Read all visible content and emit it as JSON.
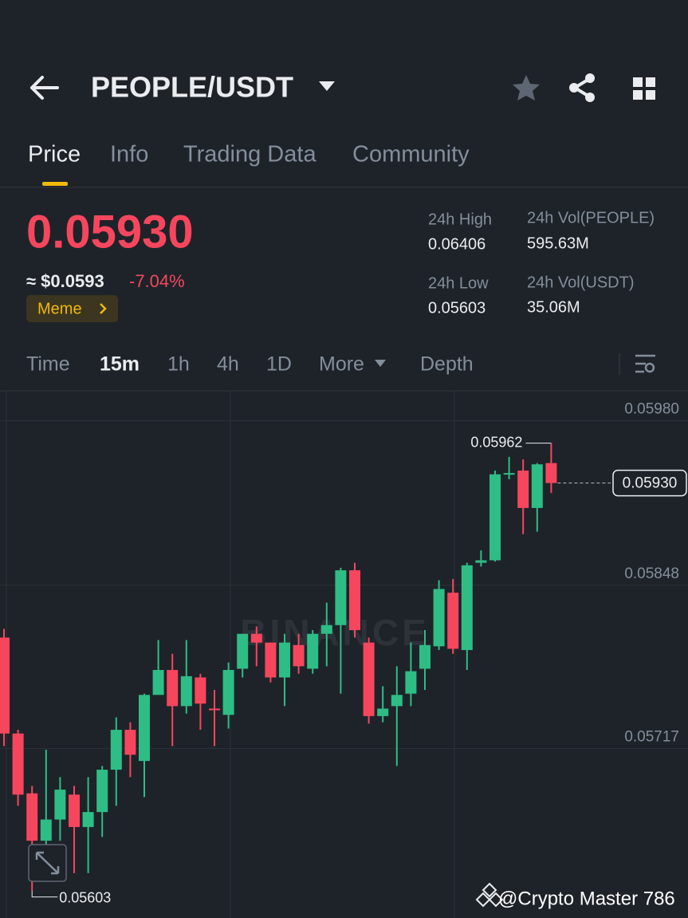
{
  "header": {
    "pair": "PEOPLE/USDT"
  },
  "tabs": [
    "Price",
    "Info",
    "Trading Data",
    "Community"
  ],
  "price": {
    "last": "0.05930",
    "usd": "≈ $0.0593",
    "change": "-7.04%",
    "tag": "Meme"
  },
  "stats": [
    {
      "label": "24h High",
      "value": "0.06406"
    },
    {
      "label": "24h Vol(PEOPLE)",
      "value": "595.63M"
    },
    {
      "label": "24h Low",
      "value": "0.05603"
    },
    {
      "label": "24h Vol(USDT)",
      "value": "35.06M"
    }
  ],
  "intervals": [
    "Time",
    "15m",
    "1h",
    "4h",
    "1D",
    "More",
    "Depth"
  ],
  "chart_data": {
    "type": "candlestick",
    "up_color": "#2ebd85",
    "down_color": "#f6465d",
    "grid": true,
    "ylim": [
      0.05581,
      0.06004
    ],
    "yticks": [
      0.05717,
      0.05848,
      {
        "value": 0.0598,
        "label": "0.05980"
      }
    ],
    "open": [
      0.05806,
      0.05729,
      0.05681,
      0.05643,
      0.0566,
      0.0568,
      0.05654,
      0.05666,
      0.057,
      0.05732,
      0.05707,
      0.0576,
      0.0578,
      0.05751,
      0.05774,
      0.05749,
      0.05744,
      0.05781,
      0.05809,
      0.05802,
      0.05774,
      0.058,
      0.05781,
      0.05809,
      0.05816,
      0.0586,
      0.05802,
      0.05743,
      0.05751,
      0.05761,
      0.05781,
      0.05799,
      0.05842,
      0.05796,
      0.05866,
      0.05868,
      0.05937,
      0.0594,
      0.0591,
      0.05946
    ],
    "high": [
      0.05813,
      0.05732,
      0.05687,
      0.05716,
      0.05694,
      0.05687,
      0.05694,
      0.05703,
      0.05742,
      0.05738,
      0.05761,
      0.05804,
      0.05793,
      0.05804,
      0.05777,
      0.05764,
      0.05786,
      0.05809,
      0.05815,
      0.05802,
      0.05809,
      0.05809,
      0.05812,
      0.05834,
      0.05862,
      0.05866,
      0.05806,
      0.05767,
      0.05783,
      0.05802,
      0.05812,
      0.05852,
      0.05853,
      0.05866,
      0.05876,
      0.0594,
      0.05951,
      0.05949,
      0.05946,
      0.05962
    ],
    "low": [
      0.05719,
      0.05671,
      0.05603,
      0.05639,
      0.05643,
      0.05617,
      0.05617,
      0.05646,
      0.05671,
      0.05694,
      0.05678,
      0.05761,
      0.05719,
      0.05745,
      0.05732,
      0.05719,
      0.05733,
      0.05774,
      0.05783,
      0.0577,
      0.05751,
      0.05777,
      0.05777,
      0.05783,
      0.05761,
      0.05806,
      0.05737,
      0.05738,
      0.05703,
      0.05751,
      0.05764,
      0.05796,
      0.05793,
      0.0578,
      0.05863,
      0.05867,
      0.05933,
      0.05889,
      0.05891,
      0.05922
    ],
    "close": [
      0.05729,
      0.0568,
      0.05643,
      0.0566,
      0.05684,
      0.05654,
      0.05666,
      0.057,
      0.05732,
      0.05712,
      0.0576,
      0.0578,
      0.05751,
      0.05775,
      0.05753,
      0.05748,
      0.0578,
      0.05809,
      0.05802,
      0.05774,
      0.05802,
      0.05783,
      0.05809,
      0.05816,
      0.0586,
      0.05812,
      0.05743,
      0.05749,
      0.0576,
      0.05779,
      0.058,
      0.05845,
      0.05797,
      0.05864,
      0.05868,
      0.05937,
      0.05938,
      0.0591,
      0.05945,
      0.0593
    ],
    "max_marker": 0.05962,
    "min_marker": 0.05603,
    "last_price": {
      "value": 0.0593,
      "label": "0.05930"
    },
    "brand": "BINANCE"
  },
  "watermark": "@Crypto Master 786"
}
